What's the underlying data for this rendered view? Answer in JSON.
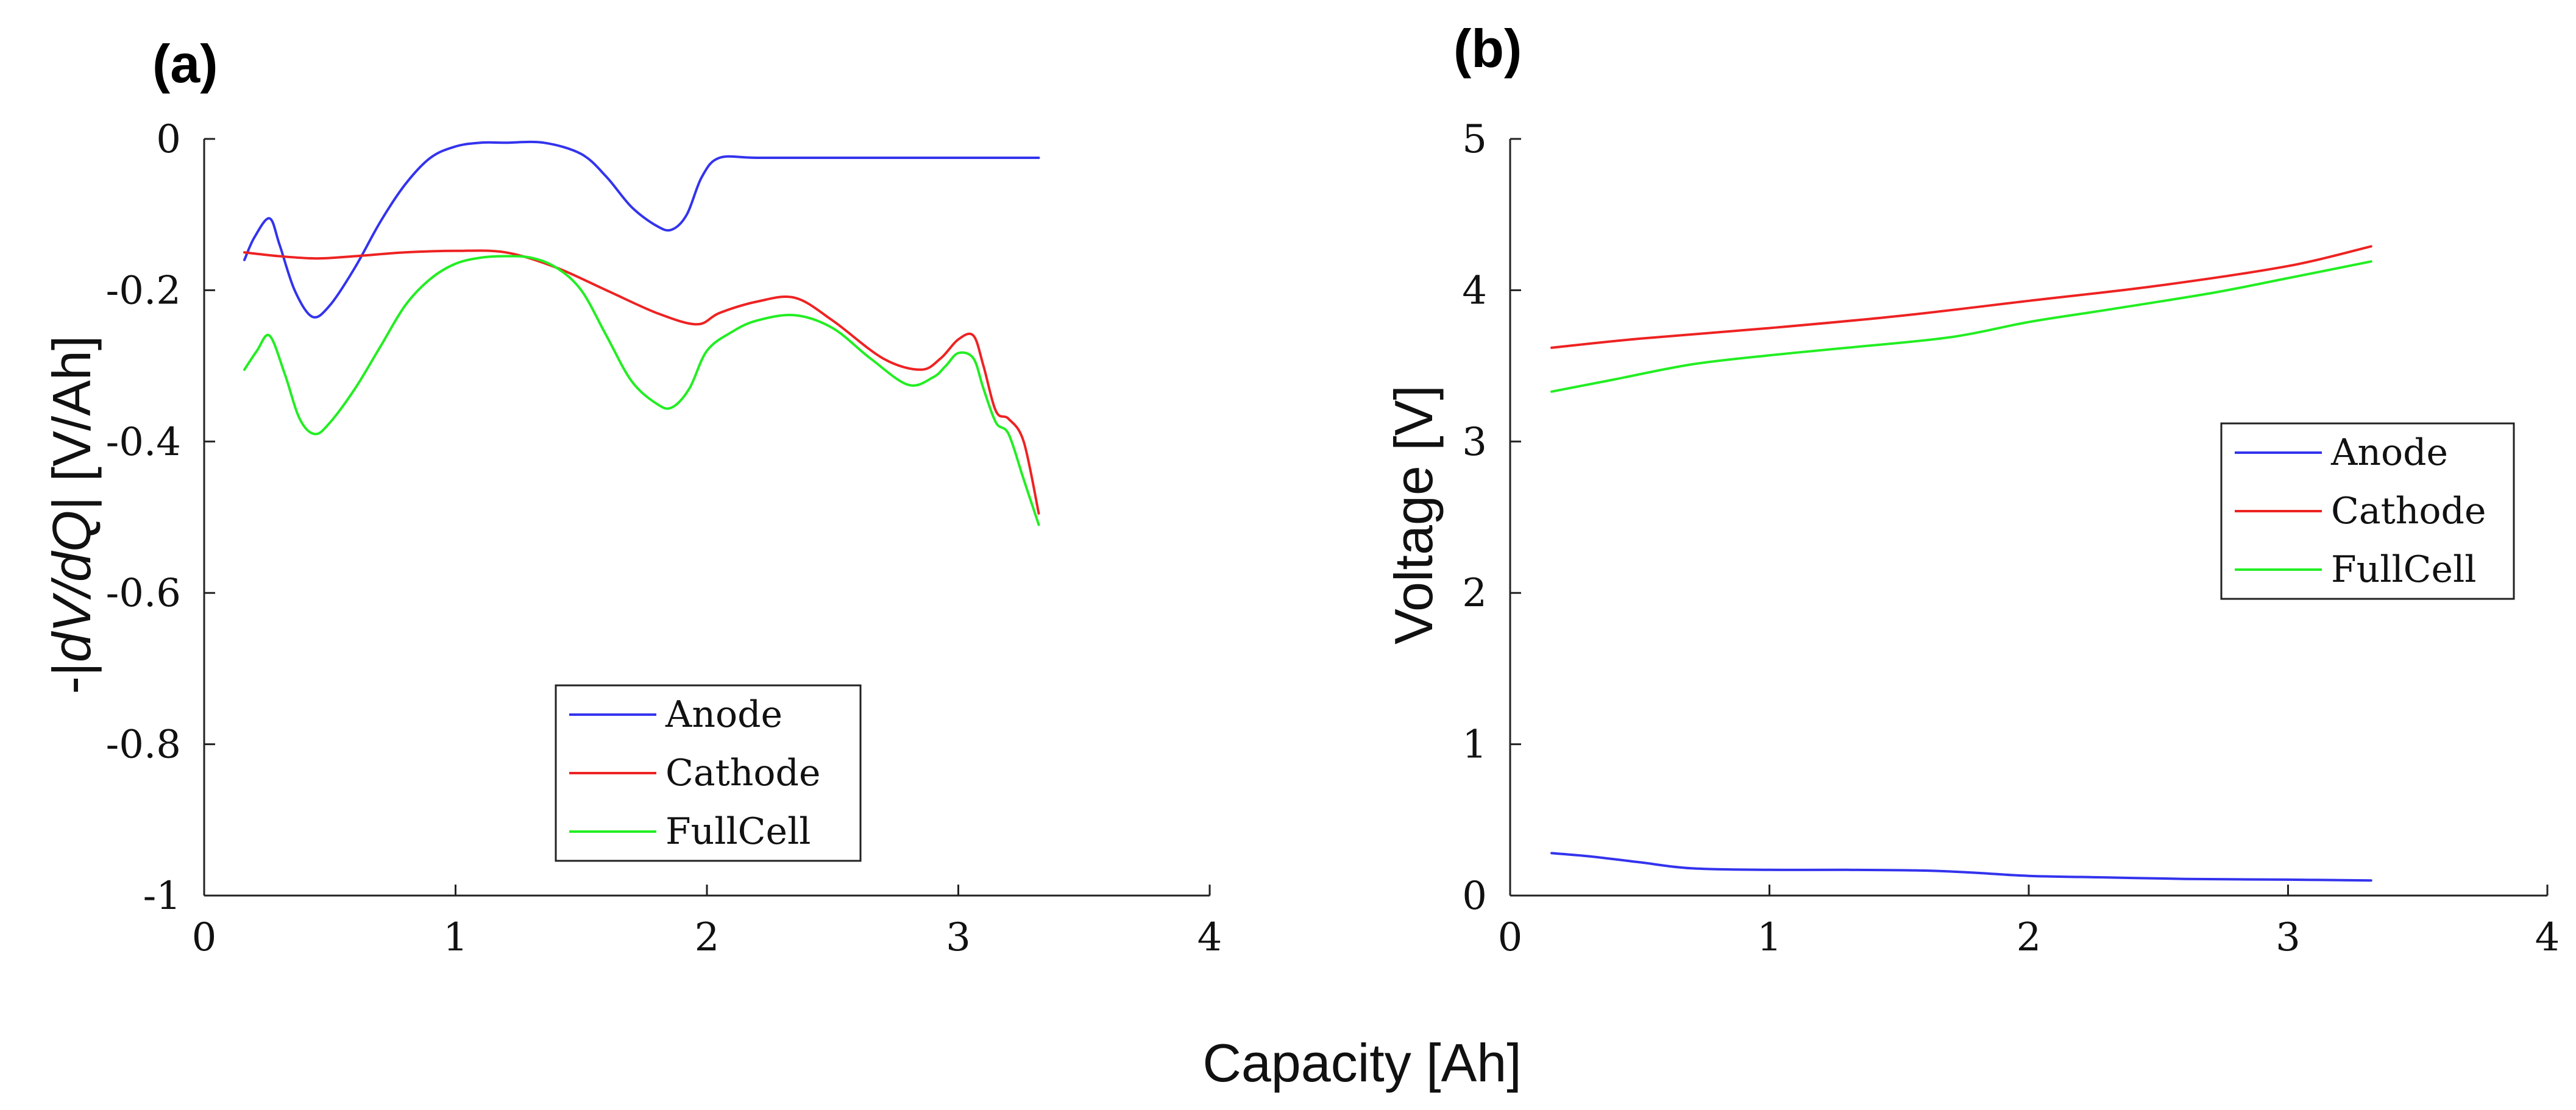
{
  "figure": {
    "shared_xlabel": "Capacity [Ah]"
  },
  "chart_data": [
    {
      "type": "line",
      "panel": "(a)",
      "ylabel_prefix": "-|",
      "ylabel_italic": "dV/dQ",
      "ylabel_suffix": "|  [V/Ah]",
      "xlim": [
        0,
        4
      ],
      "ylim": [
        -1,
        0
      ],
      "xticks": [
        0,
        1,
        2,
        3,
        4
      ],
      "yticks": [
        0,
        -0.2,
        -0.4,
        -0.6,
        -0.8,
        -1
      ],
      "xtick_labels": [
        "0",
        "1",
        "2",
        "3",
        "4"
      ],
      "ytick_labels": [
        "0",
        "-0.2",
        "-0.4",
        "-0.6",
        "-0.8",
        "-1"
      ],
      "legend_location": "lower-center",
      "series": [
        {
          "name": "Anode",
          "color": "#3333ee",
          "x": [
            0.16,
            0.2,
            0.26,
            0.3,
            0.36,
            0.43,
            0.5,
            0.6,
            0.7,
            0.8,
            0.9,
            1.0,
            1.1,
            1.2,
            1.35,
            1.5,
            1.6,
            1.7,
            1.8,
            1.86,
            1.92,
            1.98,
            2.05,
            2.2,
            2.5,
            3.0,
            3.32
          ],
          "y": [
            -0.16,
            -0.13,
            -0.105,
            -0.14,
            -0.2,
            -0.235,
            -0.22,
            -0.17,
            -0.11,
            -0.06,
            -0.025,
            -0.01,
            -0.005,
            -0.005,
            -0.005,
            -0.02,
            -0.05,
            -0.09,
            -0.115,
            -0.12,
            -0.1,
            -0.05,
            -0.025,
            -0.025,
            -0.025,
            -0.025,
            -0.025
          ]
        },
        {
          "name": "Cathode",
          "color": "#ee2222",
          "x": [
            0.16,
            0.3,
            0.45,
            0.6,
            0.8,
            1.0,
            1.2,
            1.4,
            1.6,
            1.8,
            1.96,
            2.05,
            2.2,
            2.35,
            2.5,
            2.7,
            2.85,
            2.93,
            3.0,
            3.06,
            3.1,
            3.15,
            3.2,
            3.26,
            3.32
          ],
          "y": [
            -0.15,
            -0.155,
            -0.158,
            -0.155,
            -0.15,
            -0.148,
            -0.15,
            -0.17,
            -0.2,
            -0.23,
            -0.245,
            -0.23,
            -0.215,
            -0.21,
            -0.24,
            -0.29,
            -0.305,
            -0.29,
            -0.265,
            -0.26,
            -0.3,
            -0.36,
            -0.37,
            -0.4,
            -0.495
          ]
        },
        {
          "name": "FullCell",
          "color": "#22ee22",
          "x": [
            0.16,
            0.21,
            0.26,
            0.32,
            0.38,
            0.44,
            0.5,
            0.6,
            0.7,
            0.8,
            0.9,
            1.0,
            1.1,
            1.2,
            1.3,
            1.4,
            1.5,
            1.6,
            1.7,
            1.8,
            1.86,
            1.93,
            2.0,
            2.1,
            2.2,
            2.35,
            2.5,
            2.65,
            2.8,
            2.9,
            2.95,
            3.0,
            3.06,
            3.1,
            3.15,
            3.2,
            3.26,
            3.32
          ],
          "y": [
            -0.305,
            -0.28,
            -0.26,
            -0.31,
            -0.37,
            -0.39,
            -0.375,
            -0.33,
            -0.275,
            -0.22,
            -0.185,
            -0.165,
            -0.157,
            -0.155,
            -0.157,
            -0.17,
            -0.2,
            -0.26,
            -0.32,
            -0.35,
            -0.355,
            -0.33,
            -0.28,
            -0.255,
            -0.24,
            -0.233,
            -0.25,
            -0.29,
            -0.325,
            -0.315,
            -0.3,
            -0.283,
            -0.29,
            -0.33,
            -0.375,
            -0.39,
            -0.45,
            -0.51
          ]
        }
      ]
    },
    {
      "type": "line",
      "panel": "(b)",
      "ylabel": "Voltage  [V]",
      "xlim": [
        0,
        4
      ],
      "ylim": [
        0,
        5
      ],
      "xticks": [
        0,
        1,
        2,
        3,
        4
      ],
      "yticks": [
        0,
        1,
        2,
        3,
        4,
        5
      ],
      "xtick_labels": [
        "0",
        "1",
        "2",
        "3",
        "4"
      ],
      "ytick_labels": [
        "0",
        "1",
        "2",
        "3",
        "4",
        "5"
      ],
      "legend_location": "center-right",
      "series": [
        {
          "name": "Anode",
          "color": "#3333ee",
          "x": [
            0.16,
            0.3,
            0.5,
            0.7,
            1.0,
            1.3,
            1.6,
            1.8,
            2.0,
            2.3,
            2.6,
            3.0,
            3.32
          ],
          "y": [
            0.28,
            0.26,
            0.22,
            0.18,
            0.17,
            0.17,
            0.165,
            0.15,
            0.13,
            0.12,
            0.11,
            0.105,
            0.1
          ]
        },
        {
          "name": "Cathode",
          "color": "#ee2222",
          "x": [
            0.16,
            0.5,
            1.0,
            1.5,
            2.0,
            2.5,
            3.0,
            3.32
          ],
          "y": [
            3.62,
            3.68,
            3.75,
            3.83,
            3.93,
            4.03,
            4.16,
            4.29
          ]
        },
        {
          "name": "FullCell",
          "color": "#22ee22",
          "x": [
            0.16,
            0.4,
            0.7,
            1.0,
            1.3,
            1.7,
            2.0,
            2.3,
            2.7,
            3.0,
            3.32
          ],
          "y": [
            3.33,
            3.41,
            3.51,
            3.57,
            3.62,
            3.69,
            3.79,
            3.87,
            3.98,
            4.08,
            4.19
          ]
        }
      ]
    }
  ]
}
